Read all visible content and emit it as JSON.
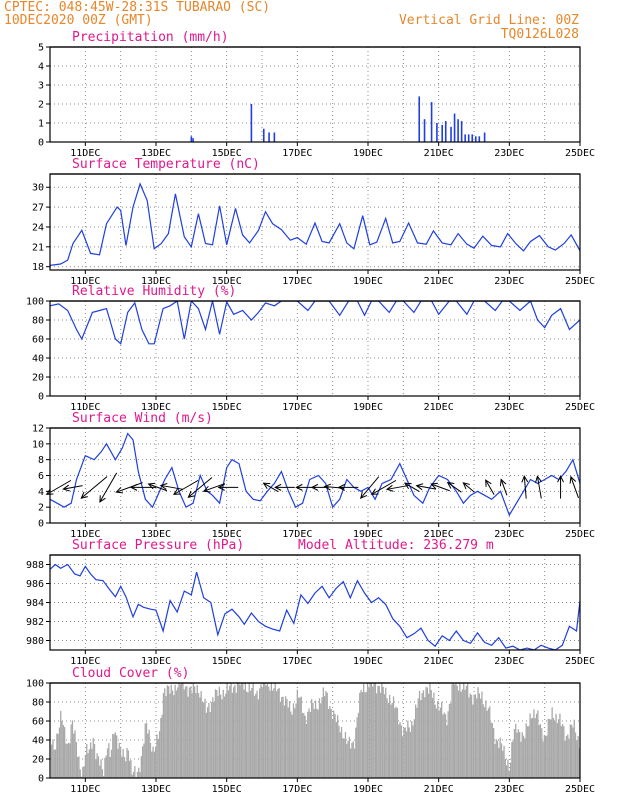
{
  "header": {
    "line1": "CPTEC:   048:45W-28:31S  TUBARAO (SC)",
    "line2": "10DEC2020 00Z (GMT)",
    "right1": "Vertical Grid Line: 00Z",
    "right2": "TQ0126L028"
  },
  "colors": {
    "header": "#e8862a",
    "title": "#e0198c",
    "line": "#1f3fe0",
    "cloud": "#a9a9a9",
    "grid": "#8c8c8c"
  },
  "x_axis": {
    "start_day": 10,
    "end_day": 25,
    "tick_days": [
      11,
      13,
      15,
      17,
      19,
      21,
      23,
      25
    ],
    "tick_labels": [
      "11DEC",
      "13DEC",
      "15DEC",
      "17DEC",
      "19DEC",
      "21DEC",
      "23DEC",
      "25DEC"
    ]
  },
  "chart_data": [
    {
      "id": "precip",
      "type": "bar",
      "title": "Precipitation (mm/h)",
      "ylim": [
        0,
        5
      ],
      "yticks": [
        0,
        1,
        2,
        3,
        4,
        5
      ],
      "x": [
        14.0,
        14.05,
        15.7,
        16.05,
        16.2,
        16.35,
        20.45,
        20.6,
        20.8,
        20.95,
        21.1,
        21.2,
        21.35,
        21.45,
        21.55,
        21.65,
        21.75,
        21.85,
        21.95,
        22.05,
        22.15,
        22.3
      ],
      "values": [
        0.3,
        0.2,
        2.0,
        0.7,
        0.5,
        0.5,
        2.4,
        1.2,
        2.1,
        1.0,
        0.9,
        1.1,
        0.8,
        1.5,
        1.2,
        1.1,
        0.4,
        0.4,
        0.4,
        0.3,
        0.3,
        0.5
      ]
    },
    {
      "id": "temp",
      "type": "line",
      "title": "Surface Temperature (nC)",
      "ylim": [
        17.5,
        32
      ],
      "yticks": [
        18,
        21,
        24,
        27,
        30
      ],
      "x": [
        10.0,
        10.3,
        10.5,
        10.65,
        10.9,
        11.15,
        11.4,
        11.6,
        11.9,
        12.0,
        12.15,
        12.35,
        12.55,
        12.75,
        12.95,
        13.15,
        13.35,
        13.55,
        13.8,
        14.0,
        14.2,
        14.4,
        14.6,
        14.8,
        15.0,
        15.25,
        15.45,
        15.65,
        15.9,
        16.1,
        16.3,
        16.55,
        16.8,
        17.0,
        17.25,
        17.5,
        17.7,
        17.9,
        18.2,
        18.4,
        18.6,
        18.85,
        19.05,
        19.25,
        19.5,
        19.7,
        19.9,
        20.15,
        20.4,
        20.65,
        20.85,
        21.1,
        21.35,
        21.55,
        21.8,
        22.0,
        22.25,
        22.5,
        22.75,
        22.95,
        23.2,
        23.4,
        23.6,
        23.85,
        24.1,
        24.3,
        24.55,
        24.75,
        25.0
      ],
      "values": [
        18.2,
        18.4,
        19.0,
        21.5,
        23.5,
        20.0,
        19.8,
        24.5,
        27.0,
        26.5,
        21.2,
        27.0,
        30.5,
        28.0,
        20.7,
        21.5,
        23.0,
        29.0,
        22.5,
        21.0,
        26.0,
        21.5,
        21.3,
        27.2,
        21.3,
        26.8,
        22.8,
        21.6,
        23.5,
        26.3,
        24.5,
        23.6,
        22.0,
        22.4,
        21.4,
        24.6,
        21.8,
        21.6,
        24.5,
        21.6,
        20.7,
        25.7,
        21.3,
        21.7,
        25.3,
        21.6,
        21.8,
        24.6,
        21.6,
        21.4,
        23.4,
        21.6,
        21.3,
        23.0,
        21.4,
        20.8,
        22.6,
        21.2,
        21.0,
        23.0,
        21.4,
        20.4,
        21.8,
        22.7,
        21.0,
        20.5,
        21.5,
        22.8,
        20.4
      ]
    },
    {
      "id": "humidity",
      "type": "line",
      "title": "Relative Humidity (%)",
      "ylim": [
        0,
        100
      ],
      "yticks": [
        0,
        20,
        40,
        60,
        80,
        100
      ],
      "x": [
        10.0,
        10.25,
        10.5,
        10.75,
        10.9,
        11.2,
        11.4,
        11.6,
        11.85,
        12.0,
        12.2,
        12.4,
        12.6,
        12.8,
        12.95,
        13.2,
        13.4,
        13.6,
        13.8,
        14.0,
        14.2,
        14.4,
        14.6,
        14.8,
        15.0,
        15.2,
        15.45,
        15.7,
        15.9,
        16.1,
        16.35,
        16.55,
        16.8,
        17.0,
        17.3,
        17.5,
        17.7,
        17.9,
        18.2,
        18.45,
        18.7,
        18.9,
        19.1,
        19.3,
        19.6,
        19.8,
        20.0,
        20.3,
        20.5,
        20.8,
        21.0,
        21.3,
        21.5,
        21.8,
        22.0,
        22.3,
        22.6,
        22.8,
        23.0,
        23.3,
        23.6,
        23.8,
        24.0,
        24.2,
        24.45,
        24.7,
        25.0
      ],
      "values": [
        95,
        97,
        90,
        70,
        60,
        88,
        90,
        92,
        60,
        55,
        88,
        98,
        70,
        55,
        55,
        92,
        95,
        100,
        60,
        100,
        92,
        70,
        100,
        65,
        99,
        86,
        90,
        80,
        88,
        98,
        95,
        100,
        100,
        100,
        90,
        100,
        100,
        100,
        85,
        100,
        100,
        85,
        100,
        100,
        88,
        100,
        100,
        88,
        100,
        100,
        86,
        100,
        100,
        86,
        100,
        100,
        90,
        100,
        100,
        90,
        100,
        80,
        72,
        85,
        92,
        70,
        80
      ]
    },
    {
      "id": "wind",
      "type": "line",
      "title": "Surface Wind (m/s)",
      "ylim": [
        0,
        12
      ],
      "yticks": [
        0,
        2,
        4,
        6,
        8,
        10,
        12
      ],
      "x": [
        10.0,
        10.2,
        10.4,
        10.6,
        10.75,
        11.0,
        11.25,
        11.45,
        11.6,
        11.85,
        12.05,
        12.2,
        12.35,
        12.5,
        12.7,
        12.9,
        13.05,
        13.25,
        13.45,
        13.65,
        13.85,
        14.05,
        14.25,
        14.45,
        14.6,
        14.8,
        15.0,
        15.15,
        15.35,
        15.55,
        15.75,
        15.95,
        16.15,
        16.35,
        16.55,
        16.75,
        16.95,
        17.15,
        17.35,
        17.6,
        17.8,
        18.0,
        18.2,
        18.4,
        18.6,
        18.8,
        19.0,
        19.2,
        19.4,
        19.65,
        19.9,
        20.1,
        20.3,
        20.55,
        20.75,
        21.0,
        21.25,
        21.5,
        21.7,
        21.9,
        22.1,
        22.3,
        22.5,
        22.75,
        23.0,
        23.2,
        23.4,
        23.6,
        23.8,
        24.0,
        24.2,
        24.4,
        24.6,
        24.8,
        25.0
      ],
      "values": [
        3.0,
        2.5,
        2.0,
        2.5,
        5.5,
        8.5,
        8.0,
        9.0,
        10.0,
        8.0,
        9.5,
        11.3,
        10.5,
        6.5,
        3.0,
        2.0,
        3.5,
        5.5,
        7.0,
        4.0,
        2.0,
        2.5,
        6.0,
        4.0,
        3.5,
        2.5,
        7.0,
        8.0,
        7.5,
        4.0,
        3.0,
        2.8,
        4.0,
        5.0,
        6.5,
        4.0,
        2.0,
        2.5,
        5.5,
        6.0,
        5.0,
        2.0,
        3.0,
        5.5,
        4.5,
        4.0,
        4.5,
        3.0,
        5.0,
        5.5,
        7.5,
        5.5,
        3.5,
        2.5,
        4.5,
        6.0,
        5.5,
        4.0,
        2.5,
        3.5,
        4.0,
        3.5,
        3.0,
        4.0,
        1.0,
        2.5,
        4.0,
        5.5,
        5.0,
        5.5,
        6.0,
        5.5,
        6.5,
        8.0,
        5.0
      ]
    },
    {
      "id": "pressure",
      "type": "line",
      "title": "Surface Pressure (hPa)",
      "annotation": "Model Altitude: 236.279 m",
      "ylim": [
        979,
        989
      ],
      "yticks": [
        980,
        982,
        984,
        986,
        988
      ],
      "x": [
        10.0,
        10.15,
        10.3,
        10.5,
        10.7,
        10.85,
        11.0,
        11.15,
        11.3,
        11.5,
        11.7,
        11.85,
        12.0,
        12.15,
        12.35,
        12.5,
        12.65,
        12.85,
        13.0,
        13.2,
        13.4,
        13.6,
        13.8,
        14.0,
        14.15,
        14.35,
        14.55,
        14.75,
        14.95,
        15.15,
        15.35,
        15.5,
        15.7,
        15.9,
        16.1,
        16.3,
        16.5,
        16.7,
        16.9,
        17.1,
        17.3,
        17.5,
        17.7,
        17.9,
        18.1,
        18.3,
        18.5,
        18.7,
        18.9,
        19.1,
        19.3,
        19.5,
        19.7,
        19.9,
        20.1,
        20.3,
        20.5,
        20.7,
        20.9,
        21.1,
        21.3,
        21.5,
        21.7,
        21.9,
        22.1,
        22.3,
        22.5,
        22.7,
        22.9,
        23.1,
        23.3,
        23.5,
        23.7,
        23.9,
        24.1,
        24.3,
        24.5,
        24.7,
        24.9,
        25.0
      ],
      "values": [
        987.5,
        988.0,
        987.6,
        988.0,
        987.0,
        986.8,
        987.8,
        987.0,
        986.4,
        986.3,
        985.3,
        984.6,
        985.7,
        984.6,
        982.5,
        983.8,
        983.5,
        983.3,
        983.2,
        981.0,
        984.2,
        983.0,
        985.2,
        984.8,
        987.2,
        984.5,
        984.0,
        980.6,
        982.8,
        983.3,
        982.5,
        981.7,
        982.9,
        982.0,
        981.5,
        981.2,
        981.0,
        983.2,
        981.8,
        984.8,
        983.9,
        985.0,
        985.7,
        984.5,
        985.5,
        986.2,
        984.5,
        986.3,
        985.0,
        984.0,
        984.5,
        983.8,
        982.3,
        981.5,
        980.3,
        980.7,
        981.3,
        980.0,
        979.4,
        980.5,
        980.0,
        981.0,
        980.0,
        979.7,
        980.8,
        979.8,
        979.5,
        980.3,
        979.2,
        979.4,
        979.0,
        979.2,
        979.0,
        979.5,
        979.2,
        979.0,
        979.5,
        981.5,
        981.0,
        984.2
      ]
    },
    {
      "id": "cloud",
      "type": "area",
      "title": "Cloud Cover (%)",
      "ylim": [
        0,
        100
      ],
      "yticks": [
        0,
        20,
        40,
        60,
        80,
        100
      ],
      "x": [
        10.0,
        10.1,
        10.2,
        10.3,
        10.4,
        10.5,
        10.6,
        10.7,
        10.8,
        10.9,
        11.0,
        11.1,
        11.2,
        11.3,
        11.4,
        11.5,
        11.6,
        11.7,
        11.8,
        11.9,
        12.0,
        12.1,
        12.2,
        12.3,
        12.4,
        12.5,
        12.6,
        12.7,
        12.8,
        12.9,
        13.0,
        13.1,
        13.2,
        13.4,
        13.6,
        13.8,
        14.0,
        14.2,
        14.4,
        14.6,
        14.8,
        15.0,
        15.2,
        15.4,
        15.6,
        15.8,
        16.0,
        16.2,
        16.4,
        16.6,
        16.8,
        17.0,
        17.2,
        17.4,
        17.6,
        17.8,
        18.0,
        18.2,
        18.4,
        18.6,
        18.8,
        19.0,
        19.2,
        19.4,
        19.6,
        19.8,
        20.0,
        20.2,
        20.4,
        20.6,
        20.8,
        21.0,
        21.2,
        21.4,
        21.6,
        21.8,
        22.0,
        22.2,
        22.4,
        22.6,
        22.8,
        23.0,
        23.1,
        23.2,
        23.4,
        23.6,
        23.8,
        24.0,
        24.2,
        24.4,
        24.6,
        24.8,
        25.0
      ],
      "values": [
        40,
        30,
        50,
        65,
        45,
        35,
        60,
        40,
        20,
        5,
        25,
        30,
        45,
        20,
        15,
        10,
        35,
        20,
        55,
        40,
        25,
        20,
        35,
        5,
        3,
        10,
        30,
        55,
        45,
        30,
        35,
        50,
        95,
        90,
        100,
        98,
        92,
        95,
        70,
        85,
        90,
        92,
        98,
        100,
        96,
        88,
        100,
        100,
        92,
        85,
        70,
        88,
        65,
        75,
        80,
        90,
        65,
        55,
        35,
        40,
        95,
        98,
        100,
        92,
        85,
        70,
        48,
        55,
        80,
        96,
        88,
        75,
        62,
        100,
        98,
        92,
        85,
        88,
        70,
        42,
        30,
        12,
        45,
        55,
        40,
        70,
        62,
        42,
        70,
        60,
        45,
        55,
        35
      ]
    }
  ],
  "wind_arrows": [
    {
      "x": 10.25,
      "dir": 210,
      "len": 1.0
    },
    {
      "x": 10.65,
      "dir": 190,
      "len": 0.7
    },
    {
      "x": 11.25,
      "dir": 220,
      "len": 1.2
    },
    {
      "x": 11.65,
      "dir": 240,
      "len": 1.2
    },
    {
      "x": 12.25,
      "dir": 200,
      "len": 1.0
    },
    {
      "x": 12.65,
      "dir": 180,
      "len": 0.9
    },
    {
      "x": 13.05,
      "dir": 160,
      "len": 0.7
    },
    {
      "x": 13.45,
      "dir": 170,
      "len": 0.8
    },
    {
      "x": 13.85,
      "dir": 210,
      "len": 1.0
    },
    {
      "x": 14.25,
      "dir": 220,
      "len": 1.1
    },
    {
      "x": 14.65,
      "dir": 200,
      "len": 0.8
    },
    {
      "x": 15.05,
      "dir": 180,
      "len": 0.7
    },
    {
      "x": 16.25,
      "dir": 150,
      "len": 0.6
    },
    {
      "x": 16.65,
      "dir": 180,
      "len": 0.7
    },
    {
      "x": 17.25,
      "dir": 180,
      "len": 0.7
    },
    {
      "x": 17.65,
      "dir": 180,
      "len": 0.6
    },
    {
      "x": 18.05,
      "dir": 175,
      "len": 0.7
    },
    {
      "x": 18.45,
      "dir": 180,
      "len": 0.7
    },
    {
      "x": 19.05,
      "dir": 230,
      "len": 1.0
    },
    {
      "x": 19.45,
      "dir": 210,
      "len": 1.0
    },
    {
      "x": 19.85,
      "dir": 190,
      "len": 0.8
    },
    {
      "x": 20.25,
      "dir": 150,
      "len": 0.6
    },
    {
      "x": 20.65,
      "dir": 170,
      "len": 0.7
    },
    {
      "x": 21.05,
      "dir": 160,
      "len": 0.7
    },
    {
      "x": 21.45,
      "dir": 145,
      "len": 0.6
    },
    {
      "x": 21.85,
      "dir": 140,
      "len": 0.5
    },
    {
      "x": 22.45,
      "dir": 120,
      "len": 0.6
    },
    {
      "x": 22.85,
      "dir": 110,
      "len": 0.6
    },
    {
      "x": 23.45,
      "dir": 95,
      "len": 0.8
    },
    {
      "x": 23.85,
      "dir": 100,
      "len": 0.8
    },
    {
      "x": 24.45,
      "dir": 90,
      "len": 0.8
    },
    {
      "x": 24.85,
      "dir": 110,
      "len": 0.8
    }
  ]
}
